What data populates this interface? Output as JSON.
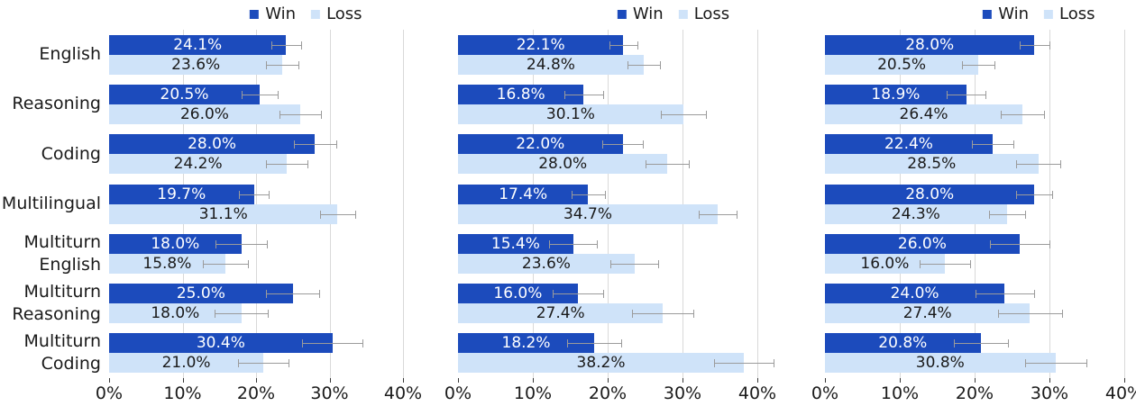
{
  "figure": {
    "background": "#ffffff",
    "colors": {
      "win": "#1C4BBC",
      "loss": "#CFE3F9",
      "grid": "#D9D9D9",
      "error": "#9B9B9B",
      "tick": "#3a3a3a",
      "text": "#1a1a1a",
      "win_value_text": "#ffffff",
      "loss_value_text": "#1a1a1a"
    },
    "legend": {
      "items": [
        {
          "label": "Win",
          "color": "#1C4BBC"
        },
        {
          "label": "Loss",
          "color": "#CFE3F9"
        }
      ]
    },
    "axis": {
      "tick_values": [
        0,
        10,
        20,
        30,
        40
      ],
      "tick_labels": [
        "0%",
        "10%",
        "20%",
        "30%",
        "40%"
      ],
      "max": 40
    },
    "row_labels": [
      [
        "English"
      ],
      [
        "Reasoning"
      ],
      [
        "Coding"
      ],
      [
        "Multilingual"
      ],
      [
        "Multiturn",
        "English"
      ],
      [
        "Multiturn",
        "Reasoning"
      ],
      [
        "Multiturn",
        "Coding"
      ]
    ]
  },
  "chart_data": [
    {
      "type": "bar",
      "orientation": "horizontal",
      "grid": true,
      "legend_position": "top",
      "xlim": [
        0,
        40
      ],
      "x_tick_labels": [
        "0%",
        "10%",
        "20%",
        "30%",
        "40%"
      ],
      "categories": [
        "English",
        "Reasoning",
        "Coding",
        "Multilingual",
        "Multiturn English",
        "Multiturn Reasoning",
        "Multiturn Coding"
      ],
      "series": [
        {
          "name": "Win",
          "values": [
            24.1,
            20.5,
            28.0,
            19.7,
            18.0,
            25.0,
            30.4
          ],
          "labels": [
            "24.1%",
            "20.5%",
            "28.0%",
            "19.7%",
            "18.0%",
            "25.0%",
            "30.4%"
          ],
          "errors": [
            2.0,
            2.5,
            2.9,
            2.0,
            3.5,
            3.6,
            4.1
          ]
        },
        {
          "name": "Loss",
          "values": [
            23.6,
            26.0,
            24.2,
            31.1,
            15.8,
            18.0,
            21.0
          ],
          "labels": [
            "23.6%",
            "26.0%",
            "24.2%",
            "31.1%",
            "15.8%",
            "18.0%",
            "21.0%"
          ],
          "errors": [
            2.2,
            2.8,
            2.8,
            2.4,
            3.1,
            3.6,
            3.4
          ]
        }
      ]
    },
    {
      "type": "bar",
      "orientation": "horizontal",
      "grid": true,
      "legend_position": "top",
      "xlim": [
        0,
        40
      ],
      "x_tick_labels": [
        "0%",
        "10%",
        "20%",
        "30%",
        "40%"
      ],
      "categories": [
        "English",
        "Reasoning",
        "Coding",
        "Multilingual",
        "Multiturn English",
        "Multiturn Reasoning",
        "Multiturn Coding"
      ],
      "series": [
        {
          "name": "Win",
          "values": [
            22.1,
            16.8,
            22.0,
            17.4,
            15.4,
            16.0,
            18.2
          ],
          "labels": [
            "22.1%",
            "16.8%",
            "22.0%",
            "17.4%",
            "15.4%",
            "16.0%",
            "18.2%"
          ],
          "errors": [
            1.9,
            2.6,
            2.7,
            2.2,
            3.2,
            3.4,
            3.6
          ]
        },
        {
          "name": "Loss",
          "values": [
            24.8,
            30.1,
            28.0,
            34.7,
            23.6,
            27.4,
            38.2
          ],
          "labels": [
            "24.8%",
            "30.1%",
            "28.0%",
            "34.7%",
            "23.6%",
            "27.4%",
            "38.2%"
          ],
          "errors": [
            2.2,
            3.0,
            2.9,
            2.5,
            3.2,
            4.1,
            4.0
          ]
        }
      ]
    },
    {
      "type": "bar",
      "orientation": "horizontal",
      "grid": true,
      "legend_position": "top",
      "xlim": [
        0,
        40
      ],
      "x_tick_labels": [
        "0%",
        "10%",
        "20%",
        "30%",
        "40%"
      ],
      "categories": [
        "English",
        "Reasoning",
        "Coding",
        "Multilingual",
        "Multiturn English",
        "Multiturn Reasoning",
        "Multiturn Coding"
      ],
      "series": [
        {
          "name": "Win",
          "values": [
            28.0,
            18.9,
            22.4,
            28.0,
            26.0,
            24.0,
            20.8
          ],
          "labels": [
            "28.0%",
            "18.9%",
            "22.4%",
            "28.0%",
            "26.0%",
            "24.0%",
            "20.8%"
          ],
          "errors": [
            2.0,
            2.6,
            2.8,
            2.4,
            4.0,
            3.9,
            3.6
          ]
        },
        {
          "name": "Loss",
          "values": [
            20.5,
            26.4,
            28.5,
            24.3,
            16.0,
            27.4,
            30.8
          ],
          "labels": [
            "20.5%",
            "26.4%",
            "28.5%",
            "24.3%",
            "16.0%",
            "27.4%",
            "30.8%"
          ],
          "errors": [
            2.2,
            2.9,
            3.0,
            2.4,
            3.4,
            4.3,
            4.1
          ]
        }
      ]
    }
  ]
}
